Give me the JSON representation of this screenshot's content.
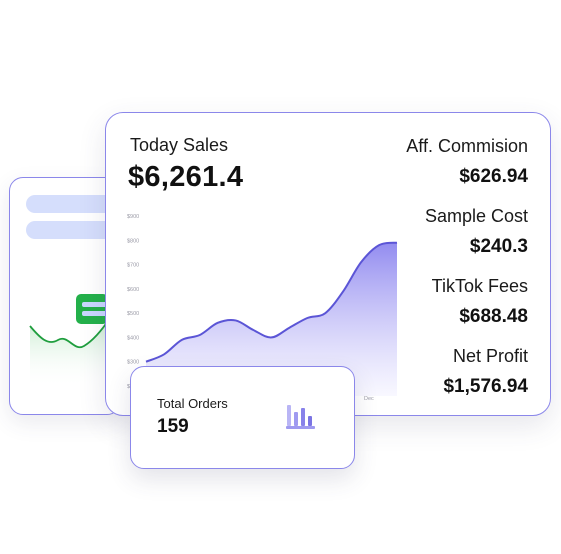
{
  "sales": {
    "label": "Today Sales",
    "value": "$6,261.4"
  },
  "stats": [
    {
      "label": "Aff. Commision",
      "value": "$626.94"
    },
    {
      "label": "Sample Cost",
      "value": "$240.3"
    },
    {
      "label": "TikTok Fees",
      "value": "$688.48"
    },
    {
      "label": "Net Profit",
      "value": "$1,576.94"
    }
  ],
  "orders": {
    "label": "Total Orders",
    "value": "159",
    "icon": "bar-chart-icon"
  },
  "chart_data": {
    "type": "area",
    "y_ticks": [
      "$900",
      "$800",
      "$700",
      "$600",
      "$500",
      "$400",
      "$300",
      "$200"
    ],
    "x_ticks": [
      "Dec"
    ],
    "ylim": [
      200,
      900
    ],
    "values": [
      300,
      330,
      390,
      410,
      460,
      470,
      430,
      400,
      440,
      480,
      500,
      590,
      710,
      780,
      790
    ],
    "colors": {
      "line": "#5b55d6",
      "fill_top": "#8d86ef",
      "fill_bottom": "#f4f3ff"
    }
  },
  "colors": {
    "accent": "#8b87ea",
    "green": "#23b04a",
    "pill": "#d5defc"
  }
}
